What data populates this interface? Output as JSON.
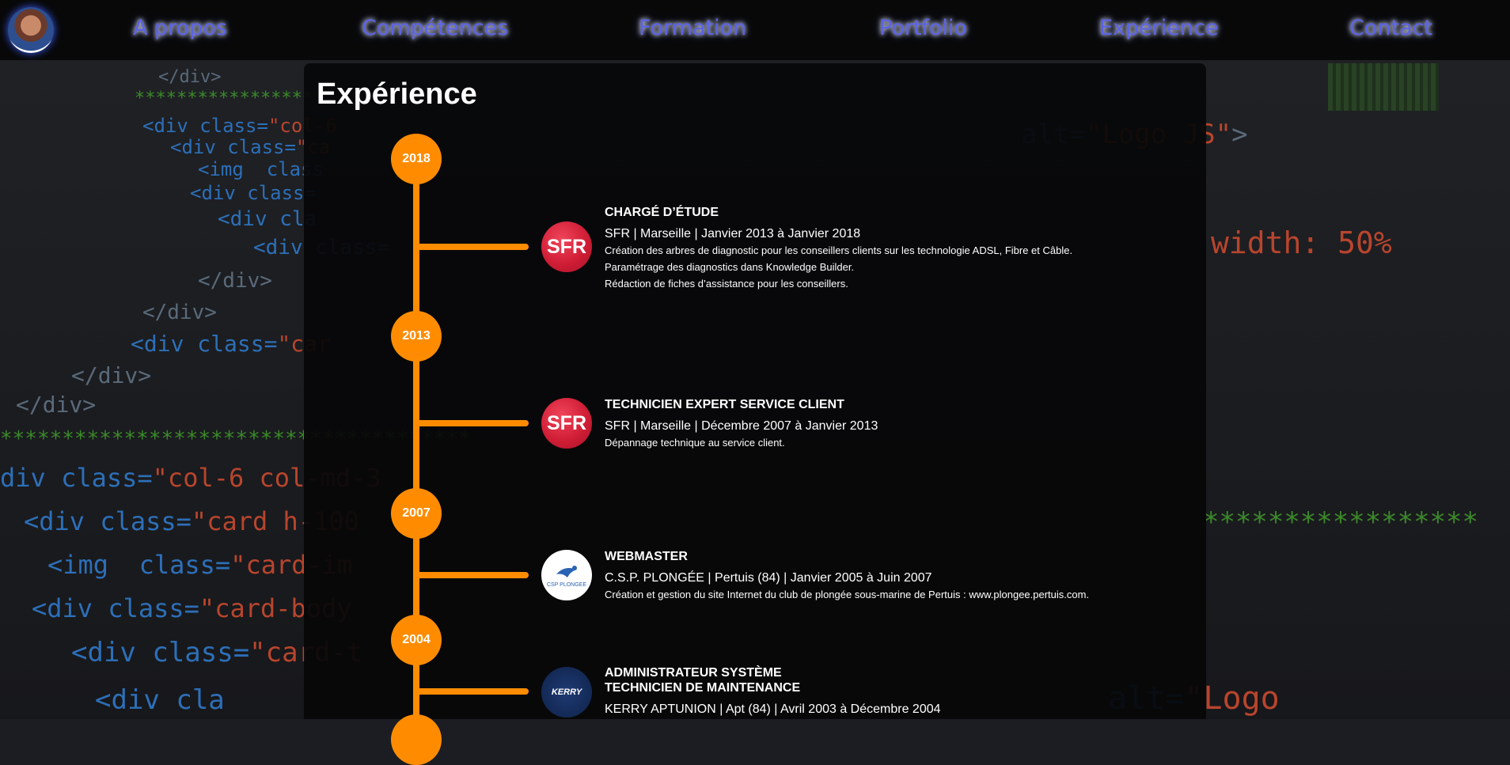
{
  "nav": {
    "items": [
      "A propos",
      "Compétences",
      "Formation",
      "Portfolio",
      "Expérience",
      "Contact"
    ]
  },
  "section": {
    "title": "Expérience"
  },
  "timeline": {
    "years": [
      "2018",
      "2013",
      "2007",
      "2004"
    ],
    "jobs": [
      {
        "logo": "SFR",
        "logo_icon": "sfr-logo",
        "title": "CHARGÉ D’ÉTUDE",
        "company": "SFR | Marseille | Janvier 2013 à Janvier 2018",
        "desc": [
          "Création des arbres de diagnostic pour les conseillers clients sur les technologie ADSL, Fibre et Câble.",
          "Paramétrage des diagnostics dans Knowledge Builder.",
          "Rédaction de fiches d’assistance pour les conseillers."
        ]
      },
      {
        "logo": "SFR",
        "logo_icon": "sfr-logo",
        "title": "TECHNICIEN EXPERT SERVICE CLIENT",
        "company": "SFR | Marseille | Décembre 2007 à Janvier 2013",
        "desc": [
          "Dépannage technique au service client."
        ]
      },
      {
        "logo": "CSP PLONGEE",
        "logo_icon": "csp-plongee-logo",
        "title": "WEBMASTER",
        "company": "C.S.P. PLONGÉE | Pertuis (84) | Janvier 2005 à Juin 2007",
        "desc": [
          "Création et gestion du site Internet du club de plongée sous-marine de Pertuis : www.plongee.pertuis.com."
        ]
      },
      {
        "logo": "KERRY",
        "logo_icon": "kerry-logo",
        "title": "ADMINISTRATEUR SYSTÈME",
        "title2": "TECHNICIEN DE MAINTENANCE",
        "company": "KERRY APTUNION | Apt (84) | Avril 2003 à Décembre 2004"
      }
    ]
  },
  "colors": {
    "accent": "#ff8c00",
    "nav_link": "#5c63e6",
    "panel": "#070708"
  }
}
